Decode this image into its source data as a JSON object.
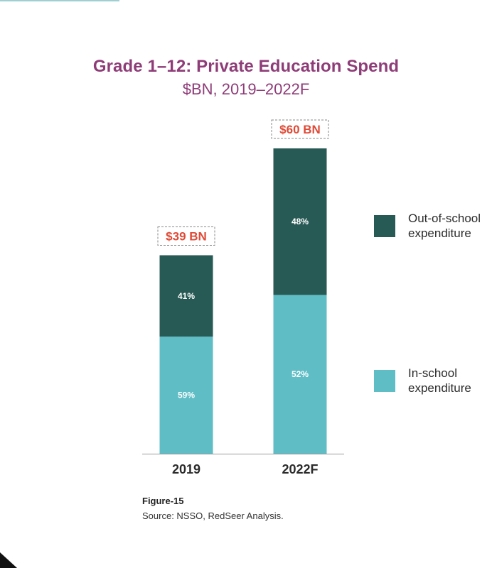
{
  "chart_data": {
    "type": "bar",
    "stacked": true,
    "title": "Grade 1–12: Private Education Spend",
    "subtitle": "$BN, 2019–2022F",
    "xlabel": "",
    "ylabel": "",
    "ylim": [
      0,
      60
    ],
    "grid": false,
    "legend_position": "right",
    "categories": [
      "2019",
      "2022F"
    ],
    "totals": [
      39,
      60
    ],
    "total_labels": [
      "$39 BN",
      "$60 BN"
    ],
    "series": [
      {
        "name": "In-school expenditure",
        "percent": [
          59,
          52
        ],
        "labels": [
          "59%",
          "52%"
        ],
        "color": "#5fbdc5"
      },
      {
        "name": "Out-of-school expenditure",
        "percent": [
          41,
          48
        ],
        "labels": [
          "41%",
          "48%"
        ],
        "color": "#285a55"
      }
    ],
    "total_label_color": "#e04a36"
  },
  "legend": {
    "items": [
      {
        "label_line1": "Out-of-school",
        "label_line2": "expenditure",
        "color": "#285a55"
      },
      {
        "label_line1": "In-school",
        "label_line2": "expenditure",
        "color": "#5fbdc5"
      }
    ]
  },
  "figure": {
    "label": "Figure-15",
    "source": "Source: NSSO, RedSeer Analysis."
  }
}
